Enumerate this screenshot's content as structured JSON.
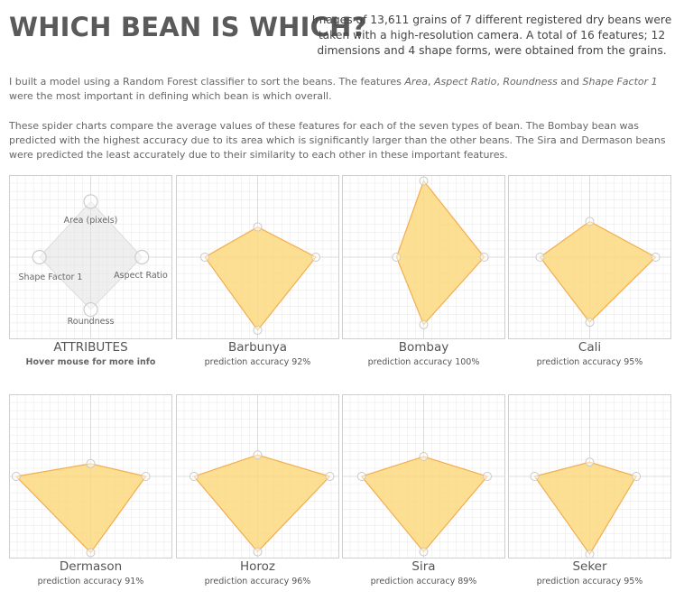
{
  "header": {
    "title": "WHICH BEAN IS WHICH?",
    "subtitle": "Images of 13,611 grains of 7 different registered dry beans were taken with a high-resolution camera. A total of 16 features; 12 dimensions and 4 shape forms, were obtained from the grains."
  },
  "intro": {
    "p1_start": "I built a model using a Random Forest classifier to sort the beans. The features ",
    "f_area": "Area",
    "sep1": ", ",
    "f_aspect": "Aspect Ratio",
    "sep2": ", ",
    "f_round": "Roundness",
    "and": " and ",
    "f_shape": "Shape Factor 1",
    "p1_end": " were the most important in defining which bean is which overall.",
    "p2": "These spider charts compare the average values of these features for each of the seven types of bean. The Bombay bean was predicted with the highest accuracy due to its area which is significantly larger than the other beans. The Sira and Dermason beans were predicted the least accurately due to their similarity to each other in these important features."
  },
  "legend_panel": {
    "caption": "ATTRIBUTES",
    "sub": "Hover mouse for more info",
    "axes": [
      "Area (pixels)",
      "Aspect Ratio",
      "Roundness",
      "Shape Factor 1"
    ]
  },
  "colors": {
    "fill": "#fbd97f",
    "stroke": "#f3ad4f",
    "grid": "#ebebeb",
    "marker": "#c9c9c9"
  },
  "chart_data": {
    "type": "radar",
    "axes": [
      "Area (pixels)",
      "Aspect Ratio",
      "Roundness",
      "Shape Factor 1"
    ],
    "range": [
      0,
      1
    ],
    "series": [
      {
        "name": "Barbunya",
        "caption": "prediction accuracy 92%",
        "values": [
          0.38,
          0.75,
          0.92,
          0.68
        ]
      },
      {
        "name": "Bombay",
        "caption": "prediction accuracy 100%",
        "values": [
          0.96,
          0.78,
          0.85,
          0.35
        ]
      },
      {
        "name": "Cali",
        "caption": "prediction accuracy 95%",
        "values": [
          0.45,
          0.85,
          0.82,
          0.64
        ]
      },
      {
        "name": "Dermason",
        "caption": "prediction accuracy 91%",
        "values": [
          0.16,
          0.71,
          0.96,
          0.96
        ]
      },
      {
        "name": "Horoz",
        "caption": "prediction accuracy 96%",
        "values": [
          0.27,
          0.93,
          0.95,
          0.82
        ]
      },
      {
        "name": "Sira",
        "caption": "prediction accuracy 89%",
        "values": [
          0.25,
          0.82,
          0.95,
          0.8
        ]
      },
      {
        "name": "Seker",
        "caption": "prediction accuracy 95%",
        "values": [
          0.18,
          0.6,
          0.98,
          0.71
        ]
      }
    ]
  }
}
